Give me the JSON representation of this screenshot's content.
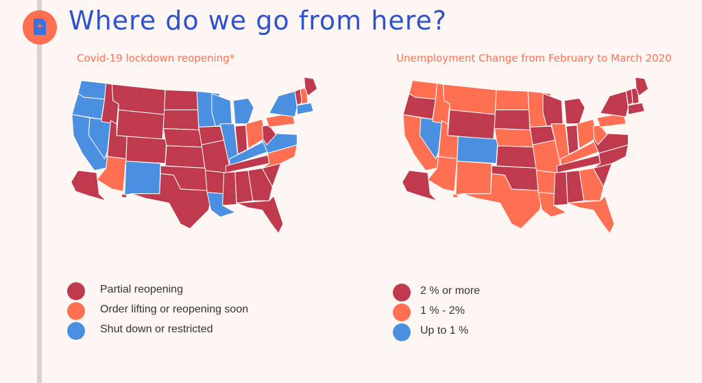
{
  "header": {
    "title": "Where do we go from here?",
    "logo_icon": "medical-document-icon"
  },
  "colors": {
    "partial": "#c03a4e",
    "lifting": "#ff6f52",
    "shutdown": "#4a8fe0",
    "accent": "#ff6f52",
    "title": "#2f52cc"
  },
  "map_left": {
    "title": "Covid-19 lockdown reopening*",
    "legend": [
      {
        "label": "Partial reopening",
        "key": "partial"
      },
      {
        "label": "Order lifting or reopening soon",
        "key": "lifting"
      },
      {
        "label": "Shut down or restricted",
        "key": "shutdown"
      }
    ],
    "states": {
      "WA": "shutdown",
      "OR": "shutdown",
      "CA": "shutdown",
      "NV": "shutdown",
      "ID": "partial",
      "MT": "partial",
      "WY": "partial",
      "UT": "partial",
      "AZ": "lifting",
      "CO": "partial",
      "NM": "shutdown",
      "ND": "partial",
      "SD": "partial",
      "NE": "partial",
      "KS": "partial",
      "OK": "partial",
      "TX": "partial",
      "MN": "shutdown",
      "IA": "partial",
      "MO": "partial",
      "AR": "partial",
      "LA": "shutdown",
      "WI": "shutdown",
      "IL": "shutdown",
      "MI": "shutdown",
      "IN": "partial",
      "OH": "lifting",
      "KY": "shutdown",
      "TN": "partial",
      "MS": "partial",
      "AL": "partial",
      "GA": "partial",
      "FL": "partial",
      "SC": "partial",
      "NC": "lifting",
      "VA": "shutdown",
      "WV": "partial",
      "PA": "lifting",
      "NY": "shutdown",
      "VT": "partial",
      "NH": "lifting",
      "ME": "partial",
      "NE_CORNER": "shutdown",
      "AK": "partial",
      "HI": "partial"
    }
  },
  "map_right": {
    "title": "Unemployment Change from February to March 2020",
    "legend": [
      {
        "label": "2 % or more",
        "key": "partial"
      },
      {
        "label": "1 % - 2%",
        "key": "lifting"
      },
      {
        "label": "Up to 1 %",
        "key": "shutdown"
      }
    ],
    "states": {
      "WA": "lifting",
      "OR": "partial",
      "CA": "lifting",
      "NV": "shutdown",
      "ID": "lifting",
      "MT": "lifting",
      "WY": "partial",
      "UT": "lifting",
      "AZ": "lifting",
      "CO": "shutdown",
      "NM": "lifting",
      "ND": "lifting",
      "SD": "partial",
      "NE": "lifting",
      "KS": "partial",
      "OK": "partial",
      "TX": "lifting",
      "MN": "lifting",
      "IA": "partial",
      "MO": "lifting",
      "AR": "lifting",
      "LA": "lifting",
      "WI": "partial",
      "IL": "lifting",
      "MI": "partial",
      "IN": "partial",
      "OH": "lifting",
      "KY": "lifting",
      "TN": "partial",
      "MS": "partial",
      "AL": "partial",
      "GA": "lifting",
      "FL": "lifting",
      "SC": "partial",
      "NC": "partial",
      "VA": "partial",
      "WV": "lifting",
      "PA": "lifting",
      "NY": "partial",
      "VT": "partial",
      "NH": "partial",
      "ME": "partial",
      "NE_CORNER": "partial",
      "AK": "partial",
      "HI": "lifting"
    }
  }
}
